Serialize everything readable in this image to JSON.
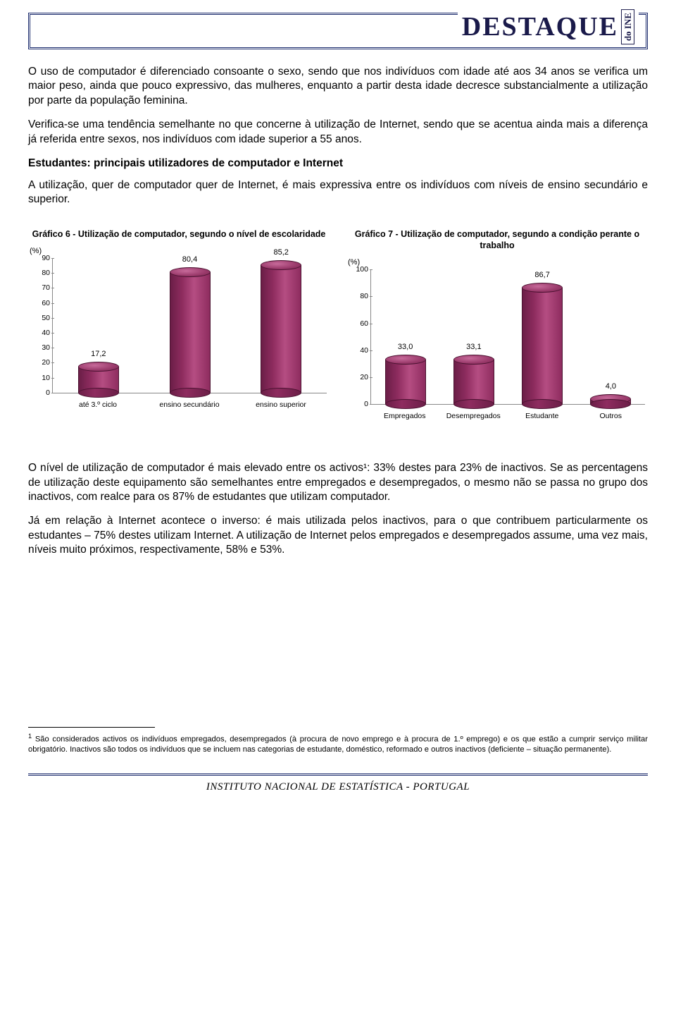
{
  "header": {
    "brand": "DESTAQUE",
    "tagline": "do INE"
  },
  "paragraphs": {
    "p1": "O uso de computador é diferenciado consoante o sexo, sendo que nos indivíduos com idade até aos 34 anos se verifica um maior peso, ainda que pouco expressivo, das mulheres, enquanto a partir desta idade decresce substancialmente a utilização por parte da população feminina.",
    "p2": "Verifica-se uma tendência semelhante no que concerne à utilização de Internet, sendo que se acentua ainda mais a diferença já referida entre sexos, nos indivíduos com idade superior a 55 anos.",
    "h1": "Estudantes: principais utilizadores de computador e Internet",
    "p3": "A utilização, quer de computador quer de Internet, é mais expressiva entre os indivíduos com níveis de ensino secundário e superior.",
    "p4": "O nível de utilização de computador é mais elevado entre os activos¹: 33% destes para 23% de inactivos. Se as percentagens de utilização deste equipamento são semelhantes entre empregados e desempregados, o mesmo não se passa no grupo dos inactivos, com realce para os 87% de estudantes que utilizam computador.",
    "p5": "Já em relação à Internet acontece o inverso: é mais utilizada pelos inactivos, para o que contribuem particularmente os estudantes – 75% destes utilizam Internet. A utilização de Internet pelos empregados e desempregados assume, uma vez mais, níveis muito próximos, respectivamente, 58% e 53%."
  },
  "chart6": {
    "type": "bar",
    "title": "Gráfico 6 - Utilização de computador, segundo o nível de escolaridade",
    "y_unit": "(%)",
    "ymax": 90,
    "ytick_step": 10,
    "categories": [
      "até 3.º ciclo",
      "ensino secundário",
      "ensino superior"
    ],
    "values": [
      17.2,
      80.4,
      85.2
    ],
    "labels": [
      "17,2",
      "80,4",
      "85,2"
    ],
    "bar_color_dark": "#6b1e47",
    "bar_color_light": "#b54d82",
    "grid_color": "#888888",
    "background_color": "#ffffff",
    "title_fontsize": 12.5,
    "label_fontsize": 11,
    "tick_fontsize": 10.5
  },
  "chart7": {
    "type": "bar",
    "title": "Gráfico 7 - Utilização de computador, segundo a condição perante o trabalho",
    "y_unit": "(%)",
    "ymax": 100,
    "ytick_step": 20,
    "categories": [
      "Empregados",
      "Desempregados",
      "Estudante",
      "Outros"
    ],
    "values": [
      33.0,
      33.1,
      86.7,
      4.0
    ],
    "labels": [
      "33,0",
      "33,1",
      "86,7",
      "4,0"
    ],
    "bar_color_dark": "#6b1e47",
    "bar_color_light": "#b54d82",
    "grid_color": "#888888",
    "background_color": "#ffffff",
    "title_fontsize": 12.5,
    "label_fontsize": 11,
    "tick_fontsize": 10.5
  },
  "footnote": {
    "marker": "1",
    "text": "São considerados activos os indivíduos empregados, desempregados (à procura de novo emprego e à procura de 1.º emprego) e os que estão a cumprir serviço militar obrigatório. Inactivos são todos os indivíduos que se incluem nas categorias de estudante, doméstico, reformado e outros inactivos (deficiente – situação permanente)."
  },
  "footer": {
    "text": "INSTITUTO NACIONAL DE ESTATÍSTICA      -      PORTUGAL"
  }
}
